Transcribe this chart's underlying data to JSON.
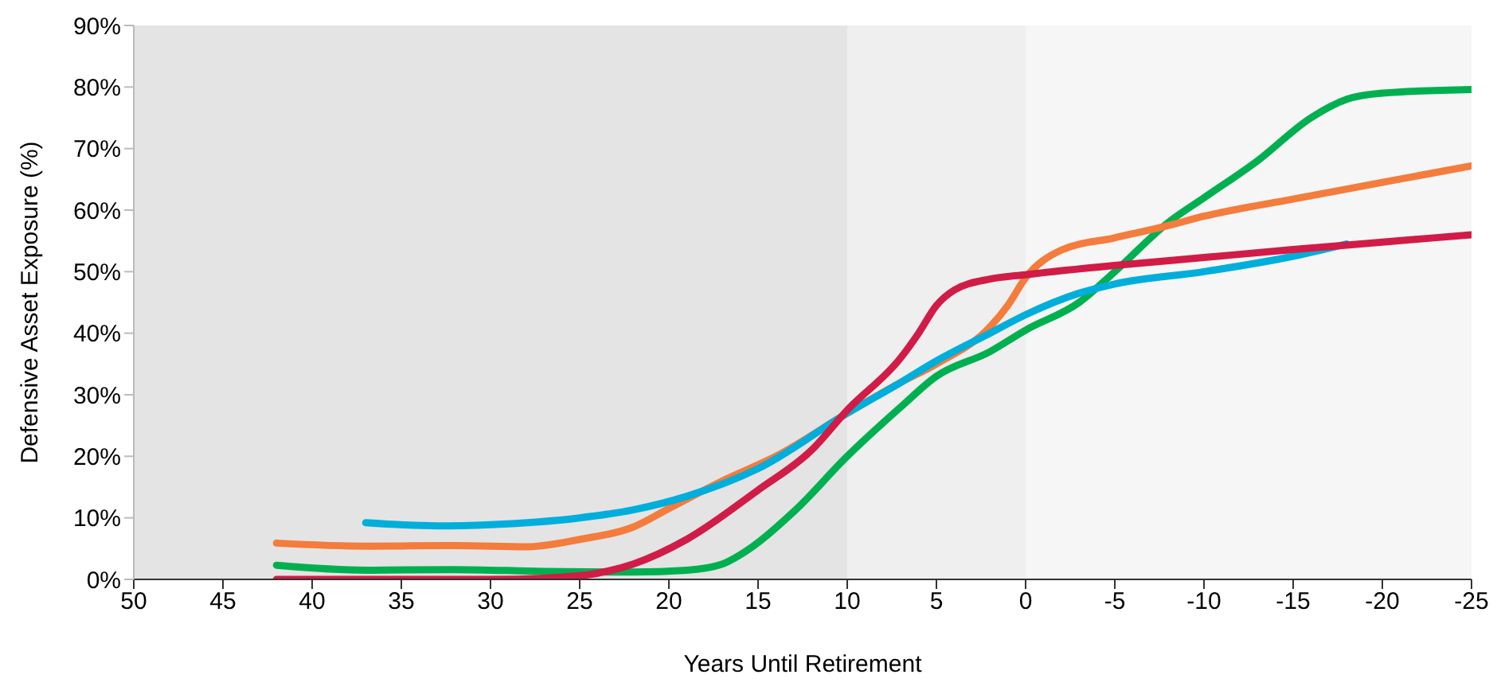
{
  "chart_data": {
    "type": "line",
    "xlabel": "Years Until Retirement",
    "ylabel": "Defensive Asset Exposure (%)",
    "xlim": [
      50,
      -25
    ],
    "xticks": [
      50,
      45,
      40,
      35,
      30,
      25,
      20,
      15,
      10,
      5,
      0,
      -5,
      -10,
      -15,
      -20,
      -25
    ],
    "ylim": [
      0,
      90
    ],
    "yticks": [
      {
        "value": 0,
        "label": "0%"
      },
      {
        "value": 10,
        "label": "10%"
      },
      {
        "value": 20,
        "label": "20%"
      },
      {
        "value": 30,
        "label": "30%"
      },
      {
        "value": 40,
        "label": "40%"
      },
      {
        "value": 50,
        "label": "50%"
      },
      {
        "value": 60,
        "label": "60%"
      },
      {
        "value": 70,
        "label": "70%"
      },
      {
        "value": 80,
        "label": "80%"
      },
      {
        "value": 90,
        "label": "90%"
      }
    ],
    "grid": false,
    "legend": false,
    "marker": "none",
    "line_style": "solid",
    "bands": [
      {
        "axis": "x",
        "from": 50,
        "to": 10,
        "color": "#e4e4e4"
      },
      {
        "axis": "x",
        "from": 10,
        "to": 0,
        "color": "#efefef"
      },
      {
        "axis": "x",
        "from": 0,
        "to": -25,
        "color": "#f6f6f6"
      }
    ],
    "series": [
      {
        "color": "#00b050",
        "x": [
          42,
          37,
          32,
          27,
          22,
          19,
          17,
          16,
          13,
          10,
          7,
          5,
          2,
          0,
          -3,
          -5,
          -8,
          -10,
          -13,
          -16,
          -18,
          -20,
          -25
        ],
        "values": [
          2.3,
          1.5,
          1.6,
          1.3,
          1.2,
          1.5,
          2.5,
          4,
          11,
          20,
          28,
          33,
          37,
          40.5,
          45,
          50,
          58,
          62,
          68,
          75,
          78,
          79,
          79.6
        ]
      },
      {
        "color": "#f47c3c",
        "x": [
          42,
          37,
          32,
          28,
          25,
          22,
          20,
          17,
          14,
          10,
          7,
          5,
          2,
          1,
          0,
          -2,
          -5,
          -8,
          -10,
          -15,
          -20,
          -25
        ],
        "values": [
          5.9,
          5.4,
          5.5,
          5.3,
          6.5,
          8.5,
          11.5,
          16,
          20,
          27,
          32,
          35,
          41,
          44.5,
          49,
          53.5,
          55.5,
          57.5,
          59,
          61.8,
          64.5,
          67.2
        ]
      },
      {
        "color": "#00aedb",
        "x": [
          37,
          33,
          30,
          25,
          22,
          19,
          15,
          10,
          7,
          5,
          2,
          0,
          -3,
          -5,
          -10,
          -15,
          -18
        ],
        "values": [
          9.2,
          8.7,
          8.9,
          10,
          11.3,
          13.5,
          18,
          27,
          32,
          35.5,
          40,
          43,
          46.5,
          48,
          50,
          52.5,
          54.5
        ]
      },
      {
        "color": "#d01c46",
        "x": [
          42,
          35,
          30,
          27,
          24,
          22,
          19,
          15,
          12,
          10,
          7,
          6,
          5,
          4,
          2,
          0,
          -5,
          -10,
          -15,
          -20,
          -25
        ],
        "values": [
          0,
          0,
          0,
          0.2,
          1,
          2.5,
          6.5,
          14.5,
          21,
          27.5,
          36,
          40,
          44.5,
          47,
          48.8,
          49.5,
          51,
          52.3,
          53.6,
          54.8,
          56
        ]
      }
    ]
  }
}
